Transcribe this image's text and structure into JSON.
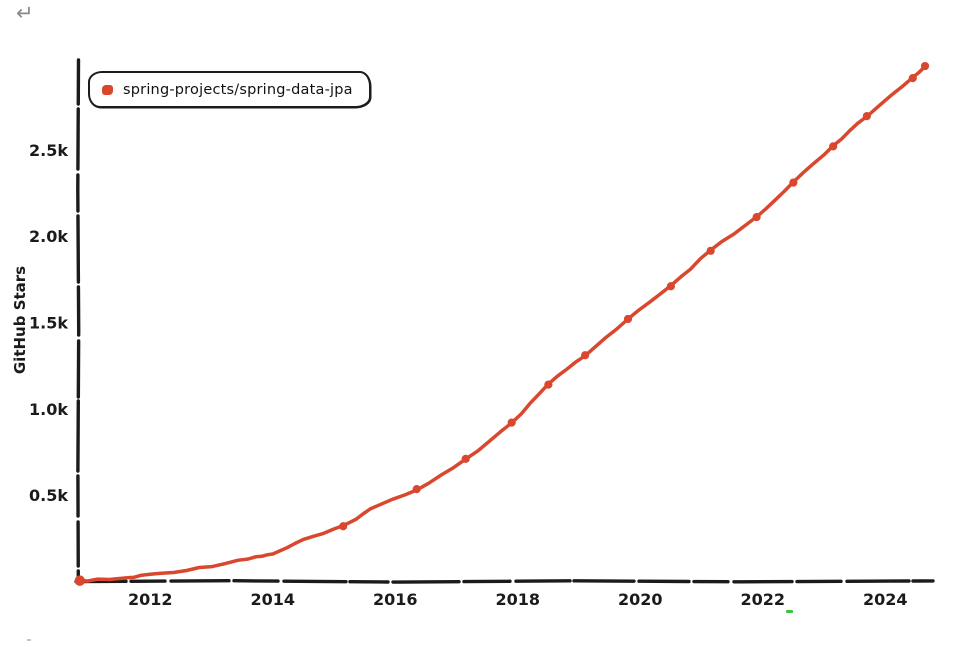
{
  "page": {
    "back_icon_char": "↵"
  },
  "stray_marks": {
    "green_dash_color": "#3fc43f",
    "gray_speck_color": "#c4c4c4"
  },
  "chart_data": {
    "type": "line",
    "title": "",
    "xlabel": "",
    "ylabel": "GitHub Stars",
    "grid": false,
    "legend_position": "top-left",
    "axis_color": "#1b1b1b",
    "xlim": [
      2010.82,
      2024.78
    ],
    "ylim": [
      0,
      3020
    ],
    "x_ticks": [
      {
        "v": 2012,
        "label": "2012"
      },
      {
        "v": 2014,
        "label": "2014"
      },
      {
        "v": 2016,
        "label": "2016"
      },
      {
        "v": 2018,
        "label": "2018"
      },
      {
        "v": 2020,
        "label": "2020"
      },
      {
        "v": 2022,
        "label": "2022"
      },
      {
        "v": 2024,
        "label": "2024"
      }
    ],
    "y_ticks": [
      {
        "v": 500,
        "label": "0.5k"
      },
      {
        "v": 1000,
        "label": "1.0k"
      },
      {
        "v": 1500,
        "label": "1.5k"
      },
      {
        "v": 2000,
        "label": "2.0k"
      },
      {
        "v": 2500,
        "label": "2.5k"
      }
    ],
    "series": [
      {
        "name": "spring-projects/spring-data-jpa",
        "color": "#d9482e",
        "points": [
          {
            "x": 2010.85,
            "y": 5,
            "marker": true
          },
          {
            "x": 2011.5,
            "y": 16,
            "marker": false
          },
          {
            "x": 2012.0,
            "y": 40,
            "marker": false
          },
          {
            "x": 2012.8,
            "y": 78,
            "marker": false
          },
          {
            "x": 2013.6,
            "y": 135,
            "marker": false
          },
          {
            "x": 2014.0,
            "y": 162,
            "marker": false
          },
          {
            "x": 2014.5,
            "y": 240,
            "marker": false
          },
          {
            "x": 2015.15,
            "y": 320,
            "marker": true
          },
          {
            "x": 2015.6,
            "y": 420,
            "marker": false
          },
          {
            "x": 2016.35,
            "y": 535,
            "marker": true
          },
          {
            "x": 2017.15,
            "y": 710,
            "marker": true
          },
          {
            "x": 2017.9,
            "y": 920,
            "marker": true
          },
          {
            "x": 2018.5,
            "y": 1140,
            "marker": true
          },
          {
            "x": 2019.1,
            "y": 1310,
            "marker": true
          },
          {
            "x": 2019.8,
            "y": 1520,
            "marker": true
          },
          {
            "x": 2020.5,
            "y": 1710,
            "marker": true
          },
          {
            "x": 2021.15,
            "y": 1915,
            "marker": true
          },
          {
            "x": 2021.9,
            "y": 2110,
            "marker": true
          },
          {
            "x": 2022.5,
            "y": 2310,
            "marker": true
          },
          {
            "x": 2023.15,
            "y": 2520,
            "marker": true
          },
          {
            "x": 2023.7,
            "y": 2695,
            "marker": true
          },
          {
            "x": 2024.45,
            "y": 2915,
            "marker": true
          },
          {
            "x": 2024.65,
            "y": 2985,
            "marker": true
          }
        ]
      }
    ]
  }
}
